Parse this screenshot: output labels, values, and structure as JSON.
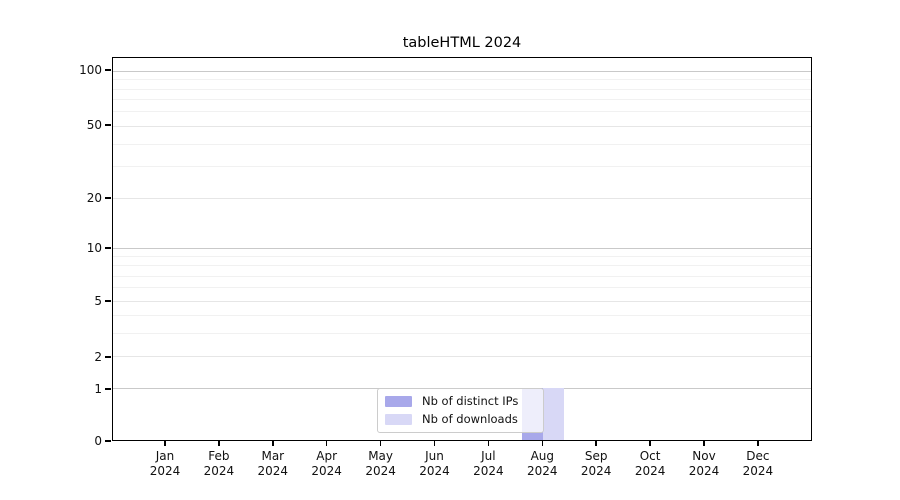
{
  "figure": {
    "title": "tableHTML 2024"
  },
  "chart_data": {
    "type": "bar",
    "title": "tableHTML 2024",
    "x": {
      "months": [
        "Jan",
        "Feb",
        "Mar",
        "Apr",
        "May",
        "Jun",
        "Jul",
        "Aug",
        "Sep",
        "Oct",
        "Nov",
        "Dec"
      ],
      "year": "2024"
    },
    "series": [
      {
        "name": "Nb of distinct IPs",
        "color": "#a8a8ea",
        "values": [
          0,
          0,
          0,
          0,
          0,
          0,
          0,
          1,
          0,
          0,
          0,
          0
        ]
      },
      {
        "name": "Nb of downloads",
        "color": "#d8d8f6",
        "values": [
          0,
          0,
          0,
          0,
          0,
          0,
          0,
          1,
          0,
          0,
          0,
          0
        ]
      }
    ],
    "y_axis": {
      "scale": "log1p",
      "ticks": [
        0,
        1,
        2,
        5,
        10,
        20,
        50,
        100
      ],
      "major_gridlines": [
        1,
        10,
        100
      ],
      "minor_gridlines": [
        3,
        4,
        6,
        7,
        8,
        9,
        30,
        40,
        60,
        70,
        80,
        90
      ],
      "range": [
        0,
        118
      ]
    },
    "legend": {
      "position": "bottom-center",
      "entries": [
        "Nb of distinct IPs",
        "Nb of downloads"
      ]
    },
    "grid": true
  },
  "colors": {
    "distinct_ips": "#a8a8ea",
    "downloads": "#d8d8f6",
    "grid_major": "#c9c9c9",
    "grid_mid": "#e6e6e6",
    "grid_minor": "#f1f1f1",
    "axis": "#000000",
    "legend_border": "#cccccc"
  }
}
